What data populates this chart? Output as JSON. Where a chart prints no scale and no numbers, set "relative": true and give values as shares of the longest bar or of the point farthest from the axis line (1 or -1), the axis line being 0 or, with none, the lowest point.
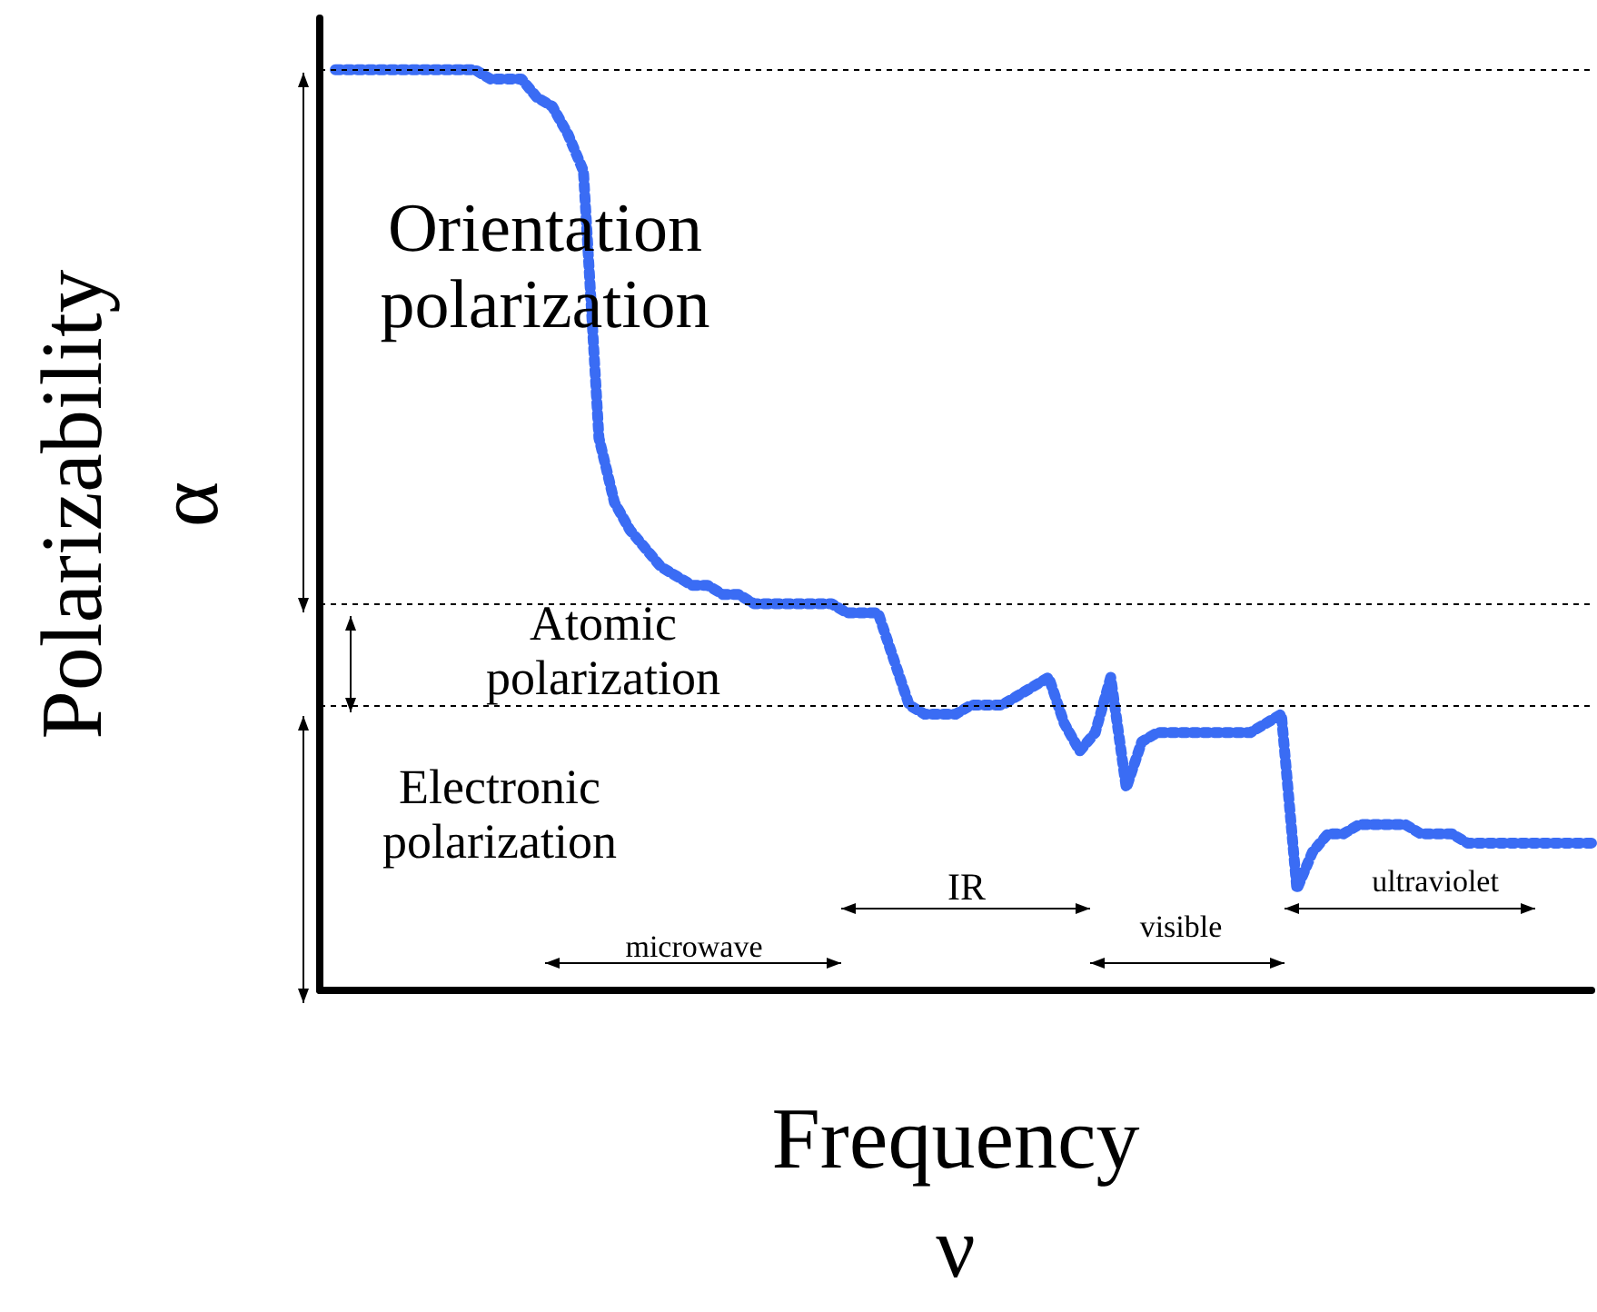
{
  "chart_data": {
    "type": "line",
    "relative": true,
    "xlabel": "Frequency\nν",
    "ylabel": "Polarizability\nα",
    "categories": [
      null,
      null,
      null,
      null,
      null,
      null,
      null,
      null,
      null,
      null,
      null,
      null,
      null,
      null,
      null,
      null,
      null,
      null,
      null,
      null,
      null,
      null,
      null,
      null,
      null,
      null,
      null,
      null,
      null,
      null,
      null,
      null,
      null,
      null,
      null,
      null,
      null,
      null,
      null,
      null,
      null,
      null,
      null,
      null,
      null,
      null,
      null,
      null,
      null,
      null,
      null,
      null,
      null,
      null,
      null,
      null,
      null,
      null,
      null,
      null,
      null,
      null,
      null,
      null,
      null,
      null,
      null,
      null,
      null,
      null,
      null,
      null,
      null,
      null,
      null,
      null,
      null,
      null,
      null,
      null,
      null,
      null,
      null
    ],
    "series": [
      {
        "color": "#3a6cf4",
        "values": [
          null,
          1,
          1,
          1,
          1,
          1,
          1,
          1,
          1,
          1,
          1,
          0.99,
          0.99,
          0.99,
          0.97,
          0.96,
          0.93,
          0.89,
          0.6,
          0.53,
          0.5,
          0.48,
          0.46,
          0.45,
          0.44,
          0.44,
          0.43,
          0.43,
          0.42,
          0.42,
          0.42,
          0.42,
          0.42,
          0.42,
          0.41,
          0.41,
          0.41,
          0.36,
          0.31,
          0.3,
          0.3,
          0.3,
          0.31,
          0.31,
          0.31,
          0.32,
          0.33,
          0.34,
          0.29,
          0.26,
          0.28,
          0.34,
          0.22,
          0.27,
          0.28,
          0.28,
          0.28,
          0.28,
          0.28,
          0.28,
          0.28,
          0.29,
          0.3,
          0.11,
          0.15,
          0.17,
          0.17,
          0.18,
          0.18,
          0.18,
          0.18,
          0.17,
          0.17,
          0.17,
          0.16,
          0.16,
          0.16,
          0.16,
          0.16,
          0.16,
          0.16,
          0.16,
          0.16
        ]
      }
    ],
    "line_style": "dashed",
    "grid": false,
    "ref_lines": [
      {
        "axis": "y",
        "value": 1,
        "color": "#000000",
        "line_style": "dashed"
      },
      {
        "axis": "y",
        "value": 0.42,
        "color": "#000000",
        "line_style": "dashed"
      },
      {
        "axis": "y",
        "value": 0.31,
        "color": "#000000",
        "line_style": "dashed"
      }
    ],
    "annotations": [
      "Orientation\npolarization",
      "Atomic\npolarization",
      "Electronic\npolarization",
      "microwave",
      "IR",
      "visible",
      "ultraviolet"
    ]
  }
}
